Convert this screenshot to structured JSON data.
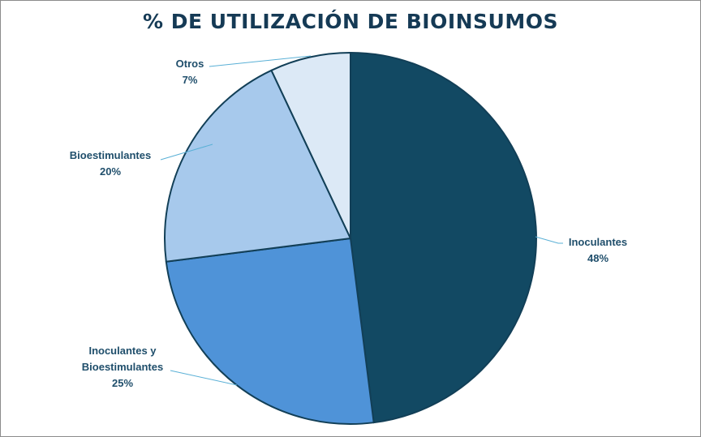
{
  "chart_data": {
    "type": "pie",
    "title": "% DE UTILIZACIÓN DE BIOINSUMOS",
    "categories": [
      "Inoculantes",
      "Inoculantes y Bioestimulantes",
      "Bioestimulantes",
      "Otros"
    ],
    "values": [
      48,
      25,
      20,
      7
    ],
    "value_labels": [
      "48%",
      "25%",
      "20%",
      "7%"
    ],
    "label_lines": [
      [
        "Inoculantes"
      ],
      [
        "Inoculantes y",
        "Bioestimulantes"
      ],
      [
        "Bioestimulantes"
      ],
      [
        "Otros"
      ]
    ],
    "colors": [
      "#124963",
      "#4f93d8",
      "#a7c9ec",
      "#dce9f6"
    ],
    "start_angle": "12 o'clock",
    "direction": "clockwise",
    "legend": "none"
  }
}
